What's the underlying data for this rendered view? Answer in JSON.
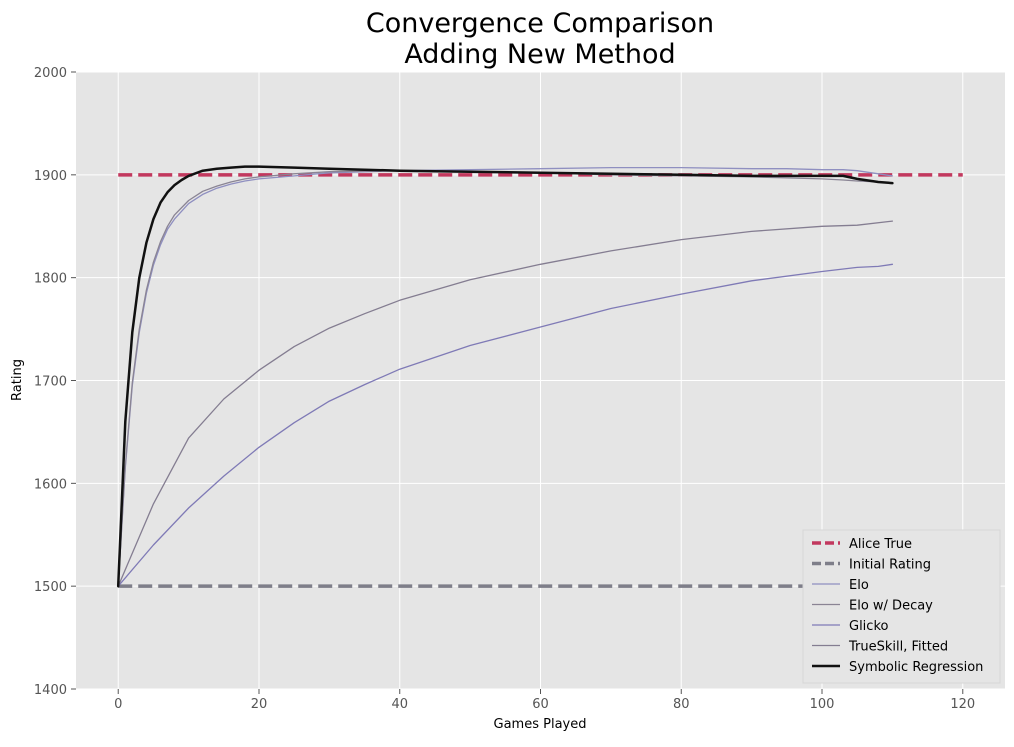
{
  "chart_data": {
    "type": "line",
    "title": [
      "Convergence Comparison",
      "Adding New Method"
    ],
    "xlabel": "Games Played",
    "ylabel": "Rating",
    "xlim": [
      -6,
      126
    ],
    "ylim": [
      1400,
      2000
    ],
    "xticks": [
      0,
      20,
      40,
      60,
      80,
      100,
      120
    ],
    "yticks": [
      1400,
      1500,
      1600,
      1700,
      1800,
      1900,
      2000
    ],
    "grid": true,
    "legend_position": "lower-right",
    "reference_lines": [
      {
        "name": "Alice True",
        "y": 1900,
        "x": [
          0,
          120
        ],
        "color": "#c2385e",
        "dashed": true
      },
      {
        "name": "Initial Rating",
        "y": 1500,
        "x": [
          0,
          120
        ],
        "color": "#7e7e89",
        "dashed": true
      }
    ],
    "series": [
      {
        "name": "Elo",
        "color": "#8f8fc0",
        "width": 1.3,
        "x": [
          0,
          1,
          2,
          3,
          4,
          5,
          6,
          7,
          8,
          10,
          12,
          14,
          16,
          18,
          20,
          25,
          30,
          40,
          50,
          60,
          70,
          80,
          90,
          95,
          100,
          103,
          105,
          108,
          110
        ],
        "y": [
          1500,
          1615,
          1695,
          1747,
          1785,
          1812,
          1832,
          1847,
          1857,
          1872,
          1881,
          1887,
          1891,
          1894,
          1896,
          1899,
          1902,
          1904,
          1905,
          1906,
          1907,
          1907,
          1906,
          1906,
          1905,
          1905,
          1904,
          1901,
          1899
        ]
      },
      {
        "name": "Elo w/ Decay",
        "color": "#8a8494",
        "width": 1.3,
        "x": [
          0,
          1,
          2,
          3,
          4,
          5,
          6,
          7,
          8,
          10,
          12,
          14,
          16,
          18,
          20,
          25,
          30,
          40,
          50,
          60,
          70,
          80,
          90,
          95,
          100,
          103,
          105,
          108,
          110
        ],
        "y": [
          1500,
          1617,
          1698,
          1750,
          1788,
          1815,
          1835,
          1850,
          1861,
          1875,
          1884,
          1889,
          1893,
          1896,
          1898,
          1901,
          1903,
          1904,
          1903,
          1902,
          1900,
          1899,
          1898,
          1897,
          1896,
          1895,
          1894,
          1893,
          1892
        ]
      },
      {
        "name": "Glicko",
        "color": "#7f7ab6",
        "width": 1.3,
        "x": [
          0,
          5,
          10,
          15,
          20,
          25,
          30,
          35,
          40,
          50,
          60,
          70,
          80,
          90,
          100,
          105,
          108,
          110
        ],
        "y": [
          1500,
          1540,
          1576,
          1607,
          1635,
          1659,
          1680,
          1696,
          1711,
          1734,
          1752,
          1770,
          1784,
          1797,
          1806,
          1810,
          1811,
          1813
        ]
      },
      {
        "name": "TrueSkill, Fitted",
        "color": "#847d91",
        "width": 1.3,
        "x": [
          0,
          5,
          10,
          15,
          20,
          25,
          30,
          35,
          40,
          50,
          60,
          70,
          80,
          90,
          100,
          105,
          110
        ],
        "y": [
          1500,
          1580,
          1644,
          1682,
          1710,
          1733,
          1751,
          1765,
          1778,
          1798,
          1813,
          1826,
          1837,
          1845,
          1850,
          1851,
          1855
        ]
      },
      {
        "name": "Symbolic Regression",
        "color": "#111111",
        "width": 2.5,
        "x": [
          0,
          1,
          2,
          3,
          4,
          5,
          6,
          7,
          8,
          9,
          10,
          12,
          14,
          16,
          18,
          20,
          25,
          30,
          40,
          50,
          60,
          70,
          80,
          90,
          95,
          100,
          103,
          105,
          108,
          110
        ],
        "y": [
          1500,
          1660,
          1747,
          1800,
          1834,
          1857,
          1873,
          1883,
          1890,
          1895,
          1899,
          1904,
          1906,
          1907,
          1908,
          1908,
          1907,
          1906,
          1904,
          1903,
          1902,
          1901,
          1900,
          1899,
          1899,
          1899,
          1899,
          1896,
          1893,
          1892
        ]
      }
    ]
  }
}
